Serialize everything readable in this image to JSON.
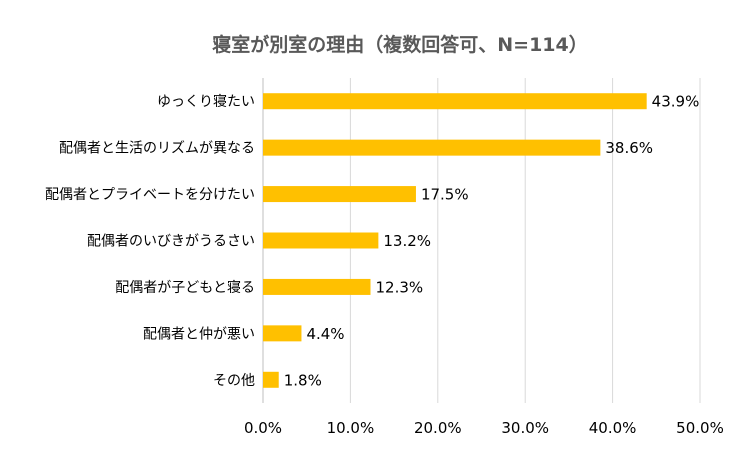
{
  "chart_data": {
    "type": "bar",
    "orientation": "horizontal",
    "title": "寝室が別室の理由（複数回答可、N=114）",
    "categories": [
      "ゆっくり寝たい",
      "配偶者と生活のリズムが異なる",
      "配偶者とプライベートを分けたい",
      "配偶者のいびきがうるさい",
      "配偶者が子どもと寝る",
      "配偶者と仲が悪い",
      "その他"
    ],
    "values": [
      43.9,
      38.6,
      17.5,
      13.2,
      12.3,
      4.4,
      1.8
    ],
    "data_labels": [
      "43.9%",
      "38.6%",
      "17.5%",
      "13.2%",
      "12.3%",
      "4.4%",
      "1.8%"
    ],
    "xlim": [
      0,
      50
    ],
    "xticks": [
      0,
      10,
      20,
      30,
      40,
      50
    ],
    "xtick_labels": [
      "0.0%",
      "10.0%",
      "20.0%",
      "30.0%",
      "40.0%",
      "50.0%"
    ],
    "xlabel": "",
    "ylabel": "",
    "grid": true,
    "legend": "none",
    "bar_color": "#FFC000",
    "grid_color": "#D9D9D9"
  }
}
